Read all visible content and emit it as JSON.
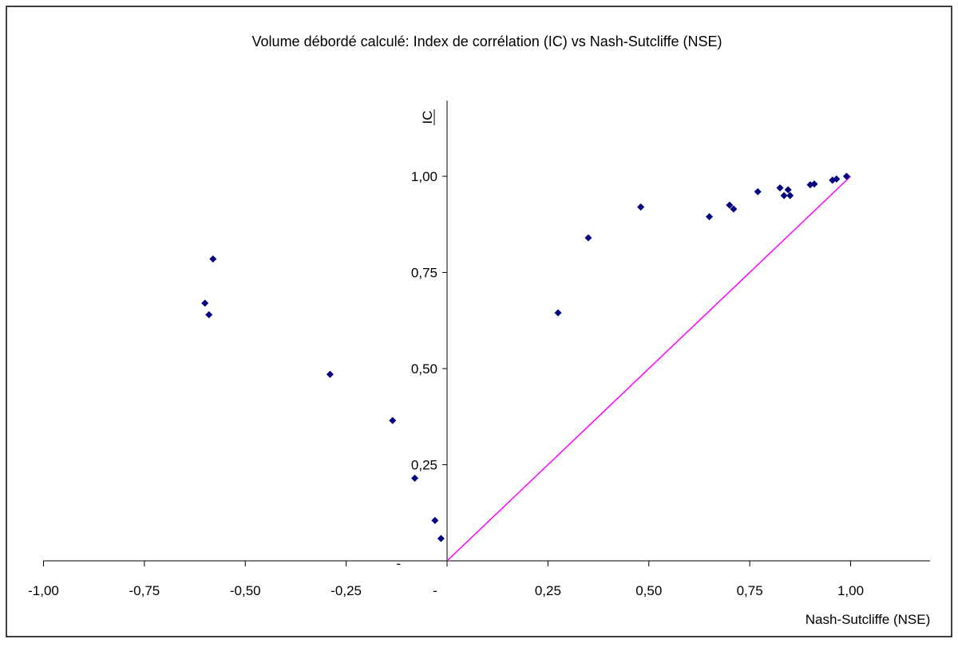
{
  "chart_data": {
    "type": "scatter",
    "title": "Volume débordé calculé: Index de corrélation (IC) vs Nash-Sutcliffe (NSE)",
    "xlabel": "Nash-Sutcliffe (NSE)",
    "ylabel": "IC",
    "xlim": [
      -1.0,
      1.2
    ],
    "ylim": [
      0.0,
      1.2
    ],
    "x_ticks": [
      {
        "value": -1.0,
        "label": "-1,00"
      },
      {
        "value": -0.75,
        "label": "-0,75"
      },
      {
        "value": -0.5,
        "label": "-0,50"
      },
      {
        "value": -0.25,
        "label": "-0,25"
      },
      {
        "value": 0.0,
        "label": "-"
      },
      {
        "value": 0.25,
        "label": "0,25"
      },
      {
        "value": 0.5,
        "label": "0,50"
      },
      {
        "value": 0.75,
        "label": "0,75"
      },
      {
        "value": 1.0,
        "label": "1,00"
      }
    ],
    "y_ticks": [
      {
        "value": 0.0,
        "label": "-"
      },
      {
        "value": 0.25,
        "label": "0,25"
      },
      {
        "value": 0.5,
        "label": "0,50"
      },
      {
        "value": 0.75,
        "label": "0,75"
      },
      {
        "value": 1.0,
        "label": "1,00"
      }
    ],
    "grid": false,
    "legend": "none",
    "series": [
      {
        "marker": "diamond",
        "color": "#000080",
        "points": [
          {
            "x": -0.6,
            "y": 0.67
          },
          {
            "x": -0.59,
            "y": 0.64
          },
          {
            "x": -0.58,
            "y": 0.785
          },
          {
            "x": -0.29,
            "y": 0.485
          },
          {
            "x": -0.135,
            "y": 0.365
          },
          {
            "x": -0.08,
            "y": 0.215
          },
          {
            "x": -0.03,
            "y": 0.105
          },
          {
            "x": -0.015,
            "y": 0.058
          },
          {
            "x": 0.275,
            "y": 0.645
          },
          {
            "x": 0.35,
            "y": 0.84
          },
          {
            "x": 0.48,
            "y": 0.92
          },
          {
            "x": 0.65,
            "y": 0.895
          },
          {
            "x": 0.7,
            "y": 0.925
          },
          {
            "x": 0.71,
            "y": 0.915
          },
          {
            "x": 0.77,
            "y": 0.96
          },
          {
            "x": 0.825,
            "y": 0.97
          },
          {
            "x": 0.835,
            "y": 0.95
          },
          {
            "x": 0.845,
            "y": 0.965
          },
          {
            "x": 0.85,
            "y": 0.95
          },
          {
            "x": 0.9,
            "y": 0.978
          },
          {
            "x": 0.91,
            "y": 0.98
          },
          {
            "x": 0.955,
            "y": 0.99
          },
          {
            "x": 0.965,
            "y": 0.993
          },
          {
            "x": 0.99,
            "y": 1.0
          }
        ]
      }
    ],
    "reference_line": {
      "color": "#ff00ff",
      "from": {
        "x": 0.0,
        "y": 0.0
      },
      "to": {
        "x": 1.0,
        "y": 1.0
      }
    }
  }
}
